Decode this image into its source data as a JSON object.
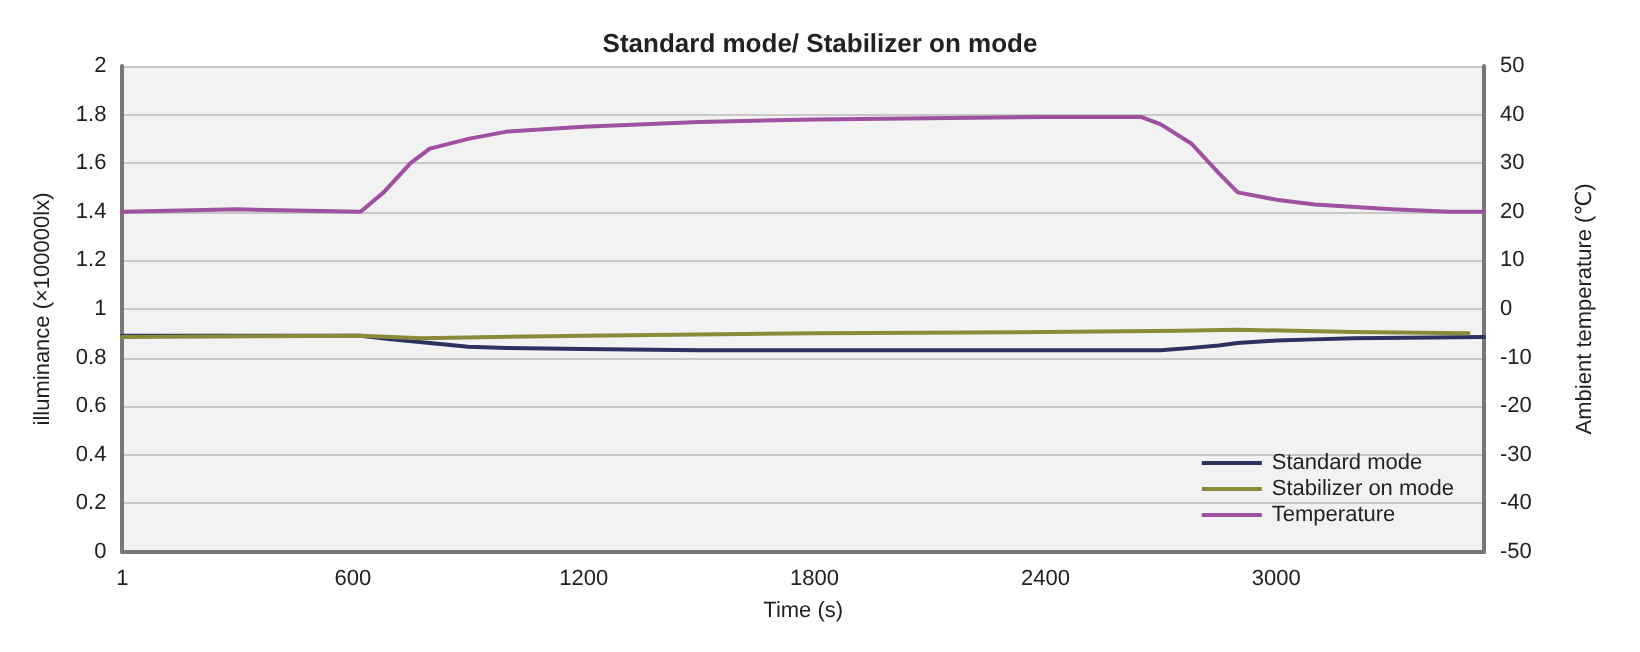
{
  "chart_data": {
    "type": "line",
    "title": "Standard mode/ Stabilizer on mode",
    "xlabel": "Time (s)",
    "ylabel": "illuminance (×100000lx)",
    "y2label": "Ambient temperature (℃)",
    "xlim": [
      1,
      3540
    ],
    "xticks": [
      1,
      600,
      1200,
      1800,
      2400,
      3000
    ],
    "ylim": [
      0,
      2
    ],
    "yticks": [
      0,
      0.2,
      0.4,
      0.6,
      0.8,
      1,
      1.2,
      1.4,
      1.6,
      1.8,
      2
    ],
    "y2lim": [
      -50,
      50
    ],
    "y2ticks": [
      -50,
      -40,
      -30,
      -20,
      -10,
      0,
      10,
      20,
      30,
      40,
      50
    ],
    "grid": "y",
    "legend": "bottom right",
    "marker": "none",
    "line_style": "solid",
    "series": [
      {
        "name": "Standard mode",
        "color": "#2e3060",
        "x": [
          1,
          620,
          700,
          800,
          900,
          1000,
          1200,
          1500,
          2000,
          2700,
          2780,
          2850,
          2900,
          3000,
          3100,
          3200,
          3540
        ],
        "values": [
          0.89,
          0.89,
          0.875,
          0.86,
          0.845,
          0.84,
          0.835,
          0.83,
          0.83,
          0.83,
          0.84,
          0.85,
          0.86,
          0.87,
          0.875,
          0.88,
          0.885
        ]
      },
      {
        "name": "Stabilizer on mode",
        "color": "#8a8a3a",
        "x": [
          1,
          620,
          700,
          780,
          1200,
          1800,
          2400,
          2750,
          2900,
          3200,
          3500
        ],
        "values": [
          0.885,
          0.89,
          0.885,
          0.88,
          0.89,
          0.9,
          0.905,
          0.91,
          0.915,
          0.905,
          0.9
        ]
      },
      {
        "name": "Temperature",
        "color": "#a050a0",
        "axis": "y2",
        "x": [
          1,
          300,
          620,
          680,
          750,
          800,
          900,
          1000,
          1200,
          1500,
          1800,
          2400,
          2650,
          2700,
          2780,
          2850,
          2900,
          3000,
          3100,
          3300,
          3450,
          3540
        ],
        "values": [
          20,
          20.5,
          20,
          24,
          30,
          33,
          35,
          36.5,
          37.5,
          38.5,
          39,
          39.5,
          39.5,
          38,
          34,
          28,
          24,
          22.5,
          21.5,
          20.5,
          20,
          20
        ]
      }
    ]
  }
}
